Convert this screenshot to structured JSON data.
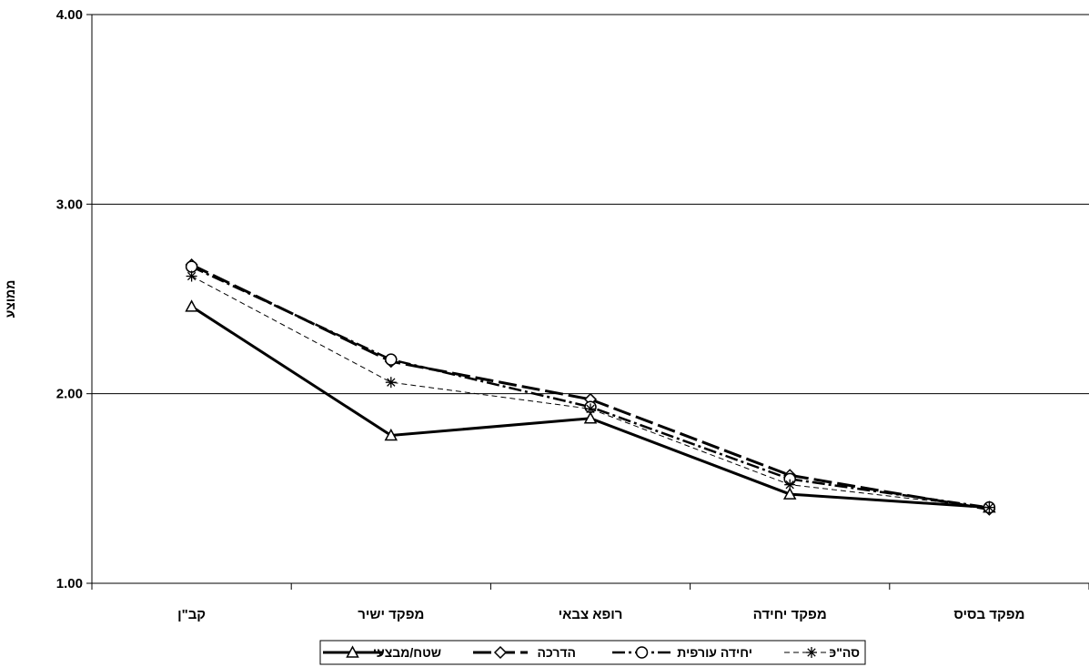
{
  "chart_data": {
    "type": "line",
    "title": "",
    "xlabel": "",
    "ylabel": "ממוצע",
    "ylim": [
      1,
      4
    ],
    "yticks": [
      "1.00",
      "2.00",
      "3.00",
      "4.00"
    ],
    "categories": [
      "קב\"ן",
      "מפקד ישיר",
      "רופא צבאי",
      "מפקד יחידה",
      "מפקד בסיס"
    ],
    "grid": "horizontal major lines",
    "legend_position": "bottom",
    "series": [
      {
        "name": "שטח/מבצעי",
        "values": [
          2.46,
          1.78,
          1.87,
          1.47,
          1.4
        ],
        "marker": "triangle",
        "style": "solid-thick",
        "color": "#000000"
      },
      {
        "name": "הדרכה",
        "values": [
          2.68,
          2.17,
          1.97,
          1.57,
          1.39
        ],
        "marker": "diamond",
        "style": "long-dash-thick",
        "color": "#000000"
      },
      {
        "name": "יחידה עורפית",
        "values": [
          2.67,
          2.18,
          1.93,
          1.55,
          1.4
        ],
        "marker": "circle",
        "style": "dash-dot",
        "color": "#000000"
      },
      {
        "name": "סה\"כ",
        "values": [
          2.62,
          2.06,
          1.92,
          1.52,
          1.4
        ],
        "marker": "star",
        "style": "thin-dash",
        "color": "#000000"
      }
    ]
  }
}
